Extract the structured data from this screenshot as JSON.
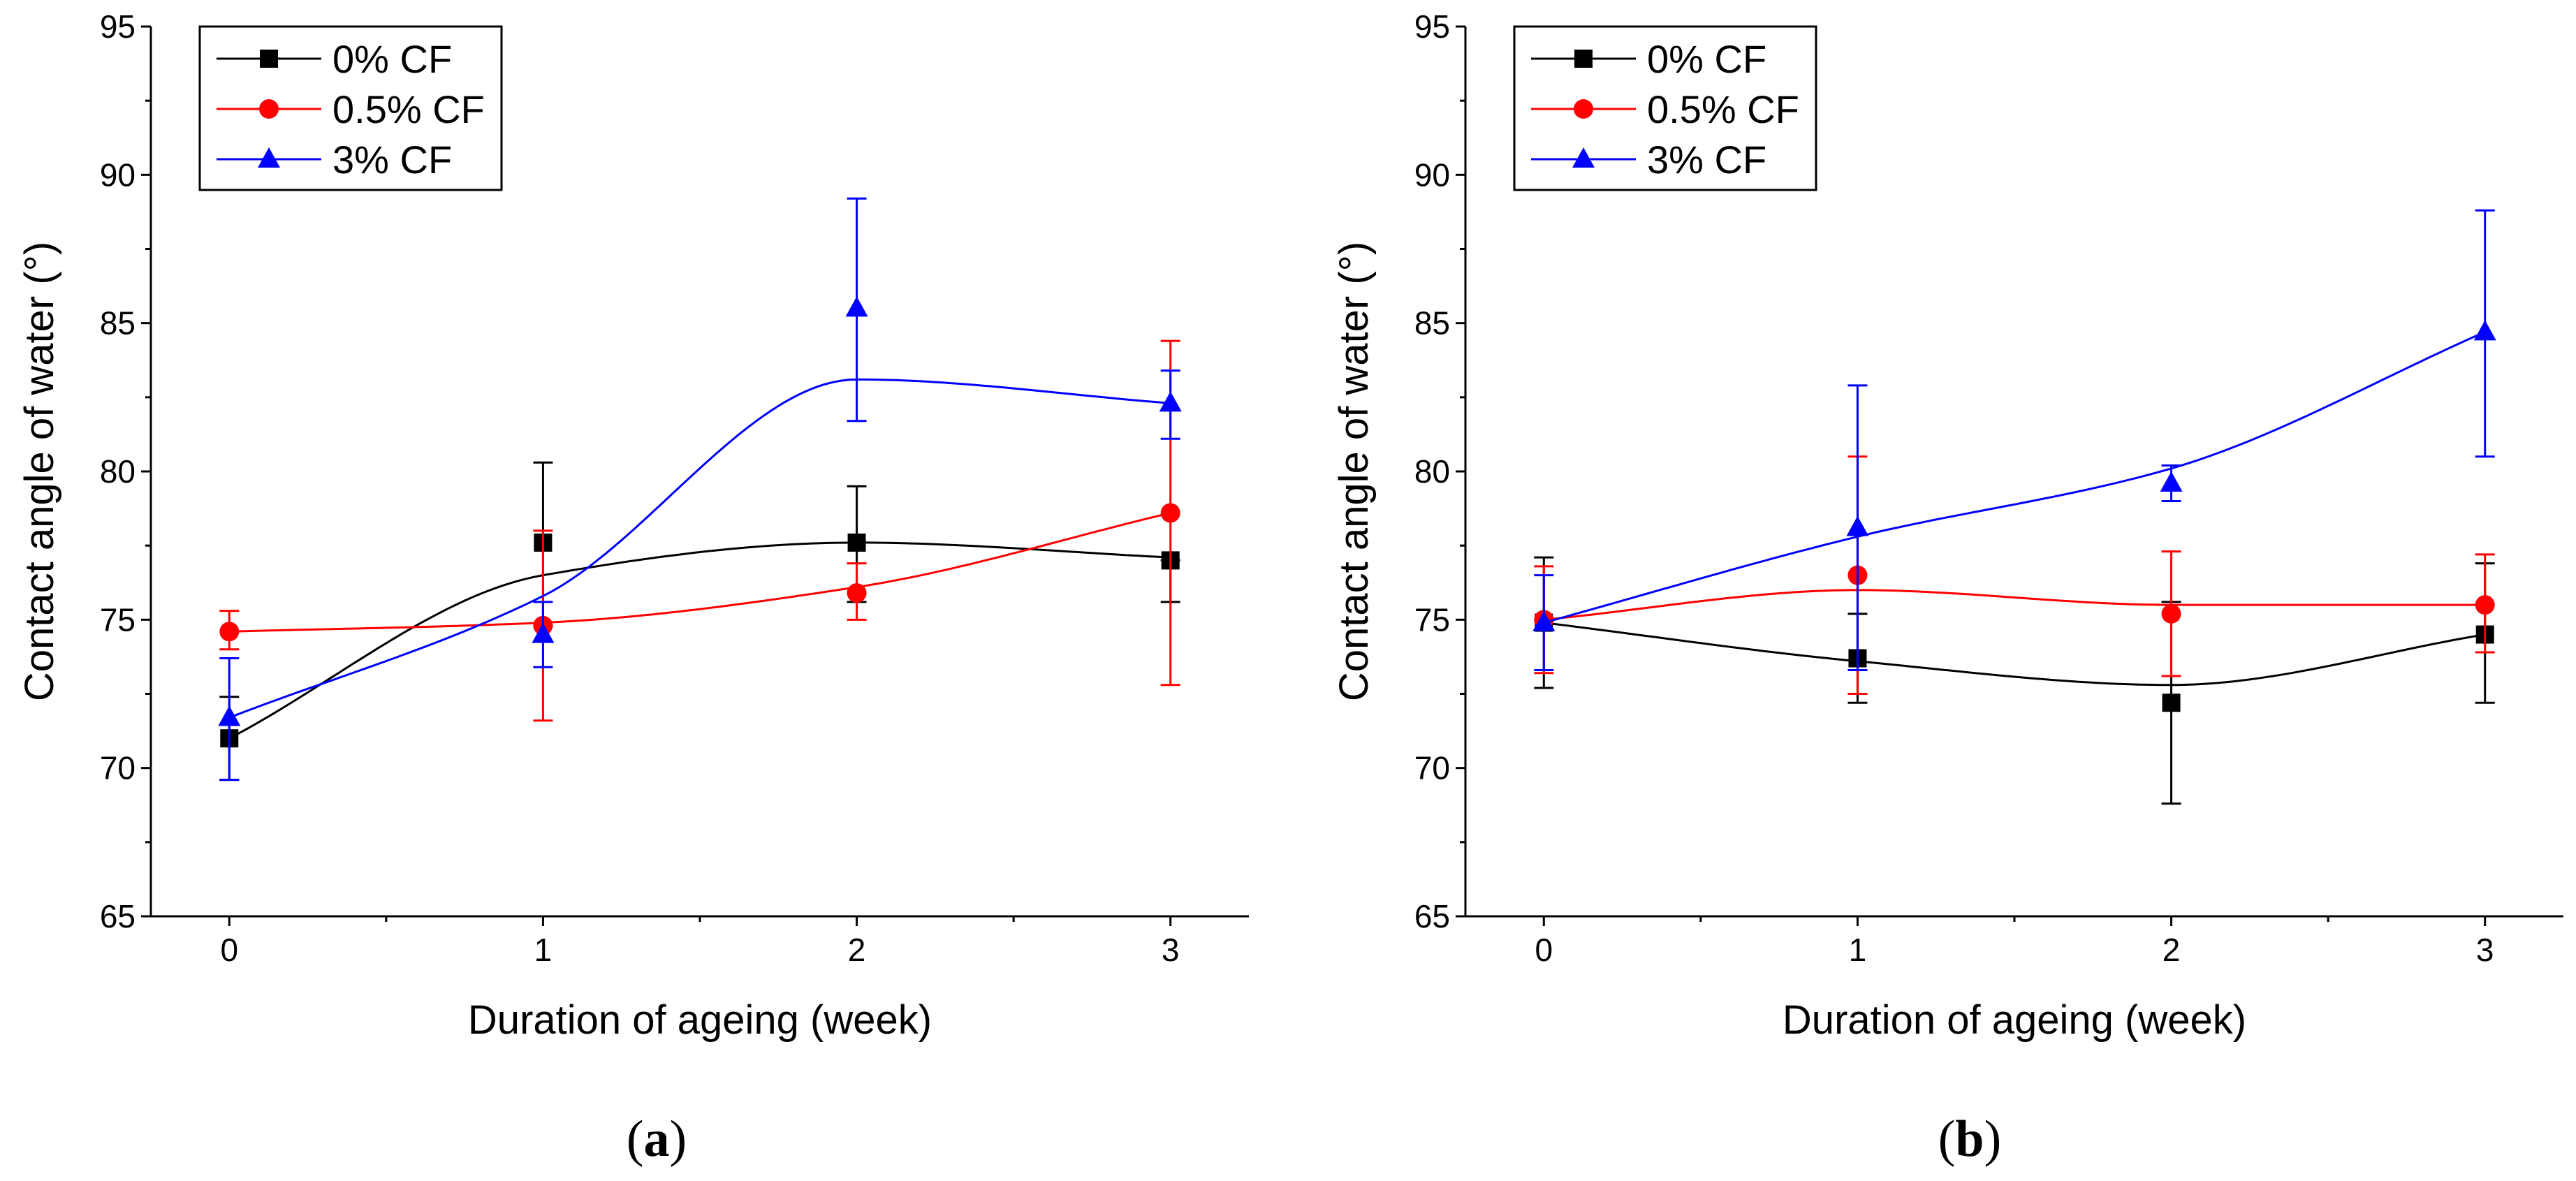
{
  "chart_data": [
    {
      "type": "line",
      "panel_label": "a",
      "xlabel": "Duration of ageing (week)",
      "ylabel": "Contact angle of water (°)",
      "xlim": [
        -0.25,
        3.25
      ],
      "ylim": [
        65,
        95
      ],
      "x_ticks": [
        0,
        1,
        2,
        3
      ],
      "y_ticks": [
        65,
        70,
        75,
        80,
        85,
        90,
        95
      ],
      "legend_position": "top-left",
      "x": [
        0,
        1,
        2,
        3
      ],
      "series": [
        {
          "name": "0% CF",
          "color": "#000000",
          "marker": "square",
          "values": [
            71.0,
            77.6,
            77.6,
            77.0
          ],
          "error_low": [
            69.6,
            74.8,
            75.6,
            75.6
          ],
          "error_high": [
            72.4,
            80.3,
            79.5,
            77.0
          ],
          "fit": [
            71.0,
            76.5,
            77.6,
            77.1
          ]
        },
        {
          "name": "0.5% CF",
          "color": "#ff0000",
          "marker": "circle",
          "values": [
            74.6,
            74.8,
            75.9,
            78.6
          ],
          "error_low": [
            74.0,
            71.6,
            75.0,
            72.8
          ],
          "error_high": [
            75.3,
            78.0,
            76.9,
            84.4
          ],
          "fit": [
            74.6,
            74.9,
            76.1,
            78.6
          ]
        },
        {
          "name": "3% CF",
          "color": "#0000ff",
          "marker": "triangle",
          "values": [
            71.7,
            74.5,
            85.5,
            82.3
          ],
          "error_low": [
            69.6,
            73.4,
            81.7,
            81.1
          ],
          "error_high": [
            73.7,
            75.6,
            89.2,
            83.4
          ],
          "fit": [
            71.7,
            75.8,
            83.1,
            82.3
          ]
        }
      ]
    },
    {
      "type": "line",
      "panel_label": "b",
      "xlabel": "Duration of ageing (week)",
      "ylabel": "Contact angle of water (°)",
      "xlim": [
        -0.25,
        3.25
      ],
      "ylim": [
        65,
        95
      ],
      "x_ticks": [
        0,
        1,
        2,
        3
      ],
      "y_ticks": [
        65,
        70,
        75,
        80,
        85,
        90,
        95
      ],
      "legend_position": "top-left",
      "x": [
        0,
        1,
        2,
        3
      ],
      "series": [
        {
          "name": "0% CF",
          "color": "#000000",
          "marker": "square",
          "values": [
            74.9,
            73.7,
            72.2,
            74.5
          ],
          "error_low": [
            72.7,
            72.2,
            68.8,
            72.2
          ],
          "error_high": [
            77.1,
            75.2,
            75.6,
            76.9
          ],
          "fit": [
            74.9,
            73.6,
            72.8,
            74.5
          ]
        },
        {
          "name": "0.5% CF",
          "color": "#ff0000",
          "marker": "circle",
          "values": [
            75.0,
            76.5,
            75.2,
            75.5
          ],
          "error_low": [
            73.2,
            72.5,
            73.1,
            73.9
          ],
          "error_high": [
            76.8,
            80.5,
            77.3,
            77.2
          ],
          "fit": [
            75.0,
            76.0,
            75.5,
            75.5
          ]
        },
        {
          "name": "3% CF",
          "color": "#0000ff",
          "marker": "triangle",
          "values": [
            74.9,
            78.1,
            79.6,
            84.7
          ],
          "error_low": [
            73.3,
            73.3,
            79.0,
            80.5
          ],
          "error_high": [
            76.5,
            82.9,
            80.2,
            88.8
          ],
          "fit": [
            74.9,
            77.8,
            80.1,
            84.7
          ]
        }
      ]
    }
  ]
}
